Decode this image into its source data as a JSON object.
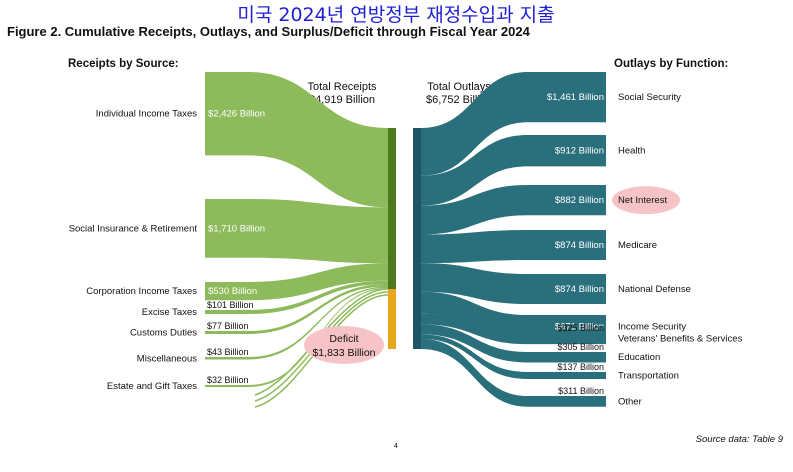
{
  "banner": "미국 2024년 연방정부 재정수입과 지출",
  "figure_title": "Figure 2. Cumulative Receipts, Outlays, and Surplus/Deficit through Fiscal Year 2024",
  "page_number": "4",
  "source_note": "Source data: Table 9",
  "colors": {
    "receipts": "#8dba5a",
    "receipts_bar": "#4d7a1f",
    "deficit": "#e8a51f",
    "outlays": "#2a6f7c",
    "outlays_bar": "#1d5566",
    "highlight": "#f6c4c6"
  },
  "chart_data": {
    "type": "sankey",
    "units": "Billion",
    "receipts_heading": "Receipts by Source:",
    "outlays_heading": "Outlays by Function:",
    "total_receipts": {
      "label": "Total Receipts",
      "value_label": "$4,919 Billion",
      "value": 4919
    },
    "total_outlays": {
      "label": "Total Outlays",
      "value_label": "$6,752 Billion",
      "value": 6752
    },
    "deficit": {
      "label": "Deficit",
      "value_label": "$1,833 Billion",
      "value": 1833
    },
    "receipts": [
      {
        "name": "Individual Income Taxes",
        "value": 2426,
        "value_label": "$2,426 Billion"
      },
      {
        "name": "Social Insurance & Retirement",
        "value": 1710,
        "value_label": "$1,710 Billion"
      },
      {
        "name": "Corporation Income Taxes",
        "value": 530,
        "value_label": "$530 Billion"
      },
      {
        "name": "Excise Taxes",
        "value": 101,
        "value_label": "$101 Billion"
      },
      {
        "name": "Customs Duties",
        "value": 77,
        "value_label": "$77 Billion"
      },
      {
        "name": "Miscellaneous",
        "value": 43,
        "value_label": "$43 Billion"
      },
      {
        "name": "Estate and Gift Taxes",
        "value": 32,
        "value_label": "$32 Billion"
      }
    ],
    "outlays": [
      {
        "name": "Social Security",
        "value": 1461,
        "value_label": "$1,461 Billion"
      },
      {
        "name": "Health",
        "value": 912,
        "value_label": "$912 Billion"
      },
      {
        "name": "Net Interest",
        "value": 882,
        "value_label": "$882 Billion",
        "highlight": true
      },
      {
        "name": "Medicare",
        "value": 874,
        "value_label": "$874 Billion"
      },
      {
        "name": "National Defense",
        "value": 874,
        "value_label": "$874 Billion"
      },
      {
        "name": "Income Security",
        "value": 671,
        "value_label": "$671 Billion"
      },
      {
        "name": "Veterans' Benefits & Services",
        "value": 325,
        "value_label": "$325 Billion"
      },
      {
        "name": "Education",
        "value": 305,
        "value_label": "$305 Billion"
      },
      {
        "name": "Transportation",
        "value": 137,
        "value_label": "$137 Billion"
      },
      {
        "name": "Other",
        "value": 311,
        "value_label": "$311 Billion"
      }
    ]
  }
}
